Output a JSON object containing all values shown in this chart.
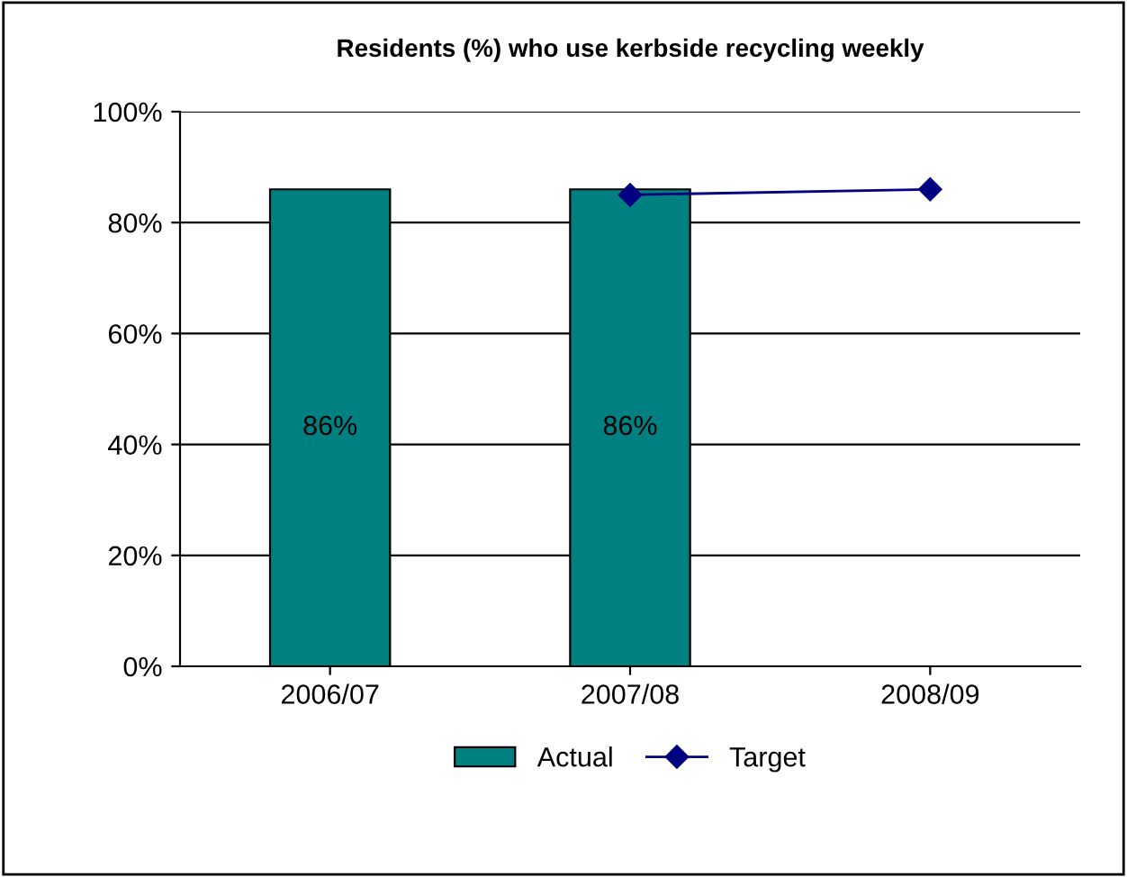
{
  "chart_data": {
    "type": "bar",
    "title": "Residents (%) who use kerbside recycling weekly",
    "categories": [
      "2006/07",
      "2007/08",
      "2008/09"
    ],
    "series": [
      {
        "name": "Actual",
        "color": "#008080",
        "values": [
          86,
          86,
          null
        ],
        "value_labels": [
          "86%",
          "86%",
          null
        ]
      },
      {
        "name": "Target",
        "type": "line",
        "color": "#000080",
        "values": [
          null,
          85,
          86
        ],
        "marker": "diamond"
      }
    ],
    "ylim": [
      0,
      100
    ],
    "yticks": [
      {
        "value": 0,
        "label": "0%"
      },
      {
        "value": 20,
        "label": "20%"
      },
      {
        "value": 40,
        "label": "40%"
      },
      {
        "value": 60,
        "label": "60%"
      },
      {
        "value": 80,
        "label": "80%"
      },
      {
        "value": 100,
        "label": "100%"
      }
    ],
    "grid": "y",
    "legend": "bottom"
  }
}
